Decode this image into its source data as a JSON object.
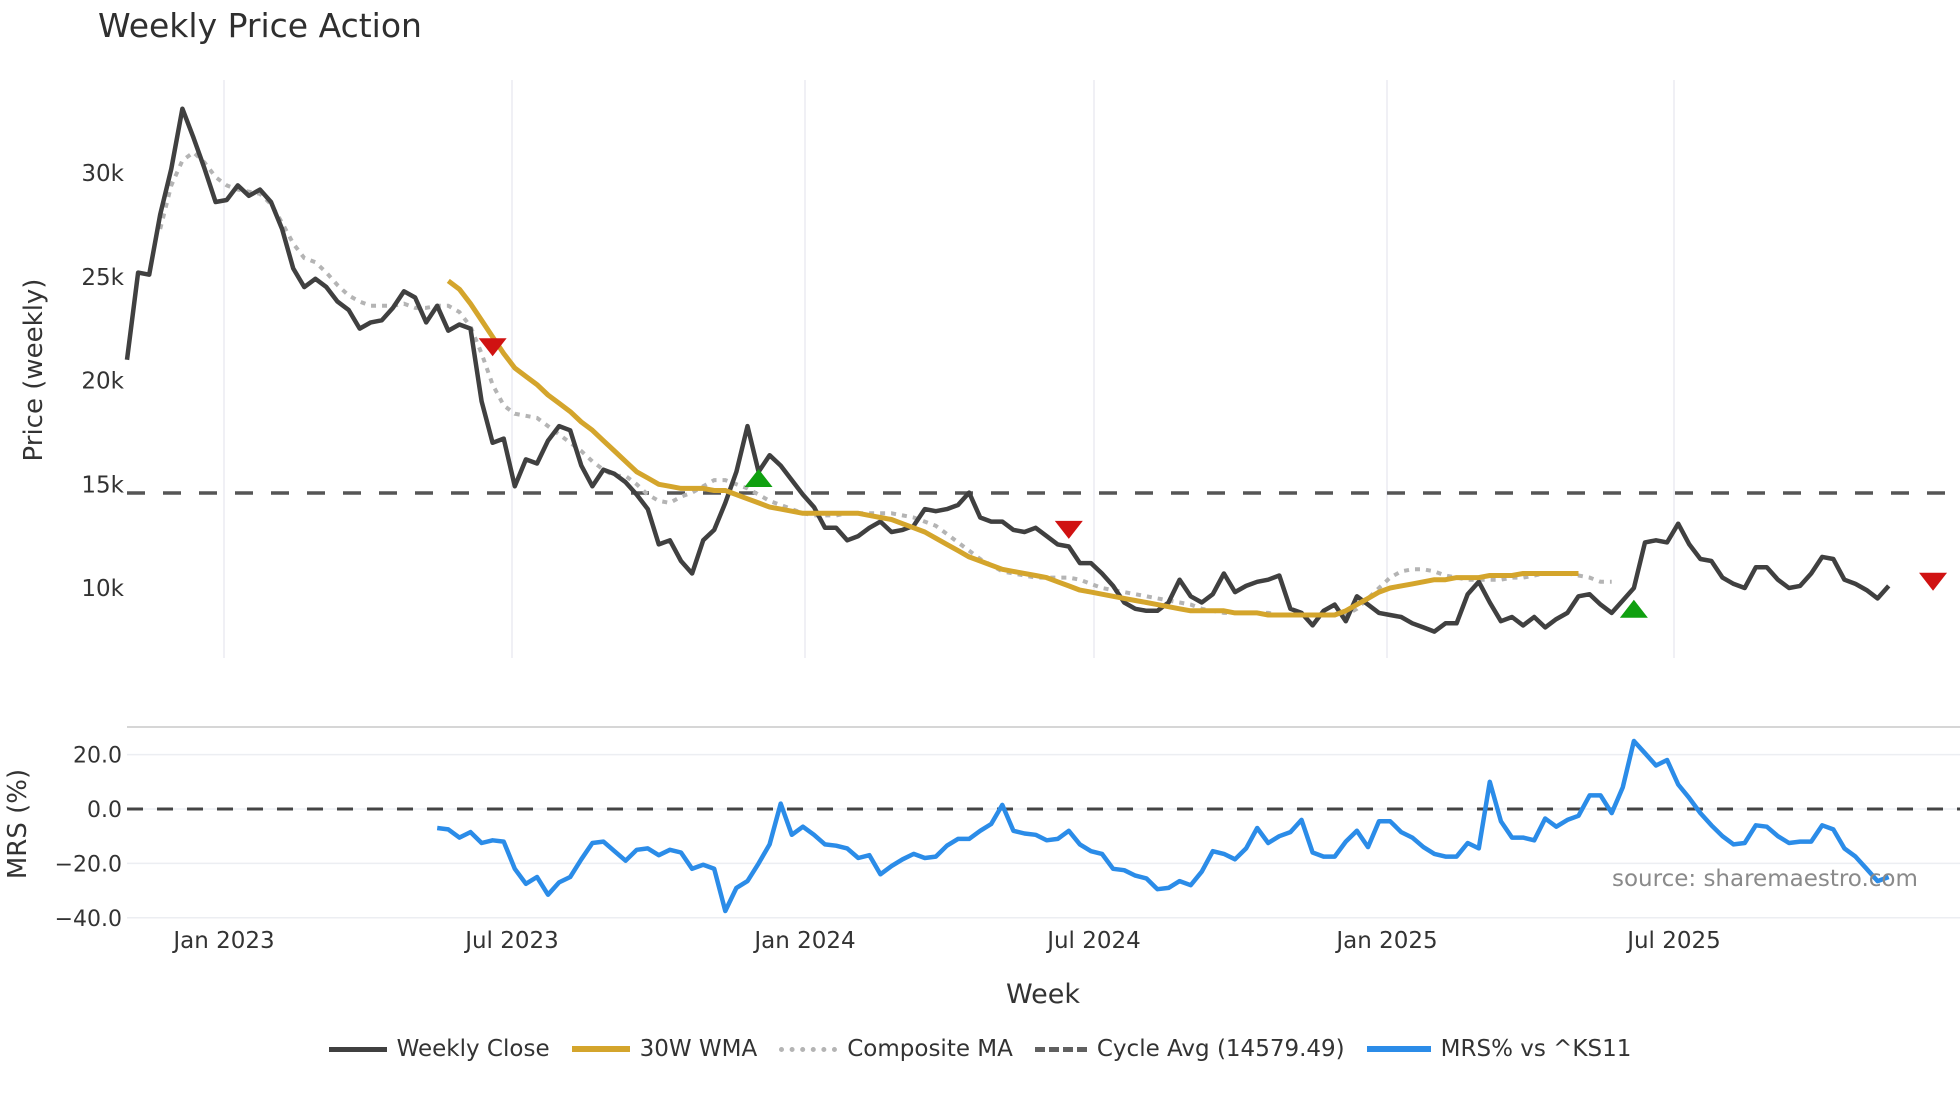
{
  "title": "Weekly Price Action",
  "source_note": "source: sharemaestro.com",
  "legend": [
    {
      "key": "close",
      "label": "Weekly Close",
      "color": "#404040"
    },
    {
      "key": "wma",
      "label": "30W WMA",
      "color": "#d4a52c"
    },
    {
      "key": "comp",
      "label": "Composite MA",
      "color": "#b4b4b4"
    },
    {
      "key": "cycle",
      "label": "Cycle Avg (14579.49)",
      "color": "#555555"
    },
    {
      "key": "mrs",
      "label": "MRS% vs ^KS11",
      "color": "#2b8ce8"
    }
  ],
  "chart_data": [
    {
      "type": "line",
      "title": "Weekly Price Action",
      "xlabel": "Week",
      "ylabel": "Price (weekly)",
      "x_tick_labels": [
        "Jan 2023",
        "Jul 2023",
        "Jan 2024",
        "Jul 2024",
        "Jan 2025",
        "Jul 2025"
      ],
      "y_tick_labels": [
        "10k",
        "15k",
        "20k",
        "25k",
        "30k"
      ],
      "y_ticks": [
        10000,
        15000,
        20000,
        25000,
        30000
      ],
      "ylim": [
        7000,
        34000
      ],
      "grid": "vertical",
      "cycle_avg": 14579.49,
      "start_week": "2022-11-14",
      "series": [
        {
          "name": "Weekly Close",
          "color": "#404040",
          "values": [
            21000,
            25200,
            25100,
            28000,
            30200,
            33100,
            31700,
            30200,
            28600,
            28700,
            29400,
            28900,
            29200,
            28600,
            27300,
            25400,
            24500,
            24900,
            24500,
            23800,
            23400,
            22500,
            22800,
            22900,
            23500,
            24300,
            24000,
            22800,
            23600,
            22400,
            22700,
            22500,
            19000,
            17000,
            17200,
            14900,
            16200,
            16000,
            17100,
            17800,
            17600,
            15900,
            14900,
            15700,
            15500,
            15100,
            14500,
            13800,
            12100,
            12300,
            11300,
            10700,
            12300,
            12800,
            14100,
            15600,
            17800,
            15600,
            16400,
            15900,
            15200,
            14500,
            13900,
            12900,
            12900,
            12300,
            12500,
            12900,
            13200,
            12700,
            12800,
            13000,
            13800,
            13700,
            13800,
            14000,
            14600,
            13400,
            13200,
            13200,
            12800,
            12700,
            12900,
            12500,
            12100,
            12000,
            11200,
            11200,
            10700,
            10100,
            9300,
            9000,
            8900,
            8900,
            9300,
            10400,
            9600,
            9300,
            9700,
            10700,
            9800,
            10100,
            10300,
            10400,
            10600,
            9000,
            8800,
            8200,
            8900,
            9200,
            8400,
            9600,
            9200,
            8800,
            8700,
            8600,
            8300,
            8100,
            7900,
            8300,
            8300,
            9700,
            10300,
            9300,
            8400,
            8600,
            8200,
            8600,
            8100,
            8500,
            8800,
            9600,
            9700,
            9200,
            8800,
            9400,
            10000,
            12200,
            12300,
            12200,
            13100,
            12100,
            11400,
            11300,
            10500,
            10200,
            10000,
            11000,
            11000,
            10400,
            10000,
            10100,
            10700,
            11500,
            11400,
            10400,
            10200,
            9900,
            9500,
            10100
          ]
        },
        {
          "name": "30W WMA",
          "color": "#d4a52c",
          "start_index": 29,
          "values": [
            24800,
            24400,
            23700,
            22900,
            22100,
            21300,
            20600,
            20200,
            19800,
            19300,
            18900,
            18500,
            18000,
            17600,
            17100,
            16600,
            16100,
            15600,
            15300,
            15000,
            14900,
            14800,
            14800,
            14800,
            14700,
            14700,
            14500,
            14300,
            14100,
            13900,
            13800,
            13700,
            13600,
            13600,
            13600,
            13600,
            13600,
            13600,
            13500,
            13400,
            13300,
            13100,
            12900,
            12700,
            12400,
            12100,
            11800,
            11500,
            11300,
            11100,
            10900,
            10800,
            10700,
            10600,
            10500,
            10300,
            10100,
            9900,
            9800,
            9700,
            9600,
            9500,
            9400,
            9300,
            9200,
            9100,
            9000,
            8900,
            8900,
            8900,
            8900,
            8800,
            8800,
            8800,
            8700,
            8700,
            8700,
            8700,
            8700,
            8700,
            8700,
            8900,
            9200,
            9500,
            9800,
            10000,
            10100,
            10200,
            10300,
            10400,
            10400,
            10500,
            10500,
            10500,
            10600,
            10600,
            10600,
            10700,
            10700,
            10700,
            10700,
            10700,
            10700
          ]
        },
        {
          "name": "Composite MA",
          "color": "#b4b4b4",
          "start_index": 3,
          "values": [
            27300,
            29400,
            30600,
            31000,
            30500,
            29800,
            29400,
            29200,
            29100,
            29000,
            28500,
            27600,
            26600,
            25900,
            25700,
            25200,
            24600,
            24100,
            23800,
            23600,
            23600,
            23600,
            23700,
            23500,
            23500,
            23600,
            23600,
            23300,
            22600,
            21300,
            19800,
            18800,
            18400,
            18300,
            18200,
            17800,
            17400,
            17000,
            16600,
            16100,
            15700,
            15400,
            15400,
            15000,
            14500,
            14200,
            14100,
            14400,
            14600,
            14900,
            15200,
            15200,
            15000,
            14800,
            14500,
            14200,
            14000,
            13800,
            13600,
            13500,
            13500,
            13500,
            13600,
            13600,
            13600,
            13600,
            13600,
            13500,
            13400,
            13200,
            13000,
            12600,
            12200,
            11800,
            11400,
            11100,
            10800,
            10700,
            10600,
            10500,
            10500,
            10500,
            10500,
            10400,
            10200,
            10000,
            9900,
            9800,
            9700,
            9600,
            9500,
            9400,
            9300,
            9200,
            9000,
            8900,
            8800,
            8800,
            8800,
            8800,
            8800,
            8700,
            8700,
            8700,
            8700,
            8700,
            8700,
            8700,
            9000,
            9500,
            10000,
            10500,
            10800,
            10900,
            10900,
            10800,
            10600,
            10500,
            10400,
            10400,
            10400,
            10400,
            10500,
            10500,
            10600,
            10700,
            10700,
            10700,
            10600,
            10500,
            10300,
            10300
          ]
        },
        {
          "name": "Cycle Avg (14579.49)",
          "color": "#555555",
          "constant": 14579.49
        }
      ],
      "signals": [
        {
          "type": "sell",
          "color": "#d01212",
          "week_index": 33,
          "value": 21600
        },
        {
          "type": "buy",
          "color": "#10a010",
          "week_index": 57,
          "value": 15300
        },
        {
          "type": "sell",
          "color": "#d01212",
          "week_index": 85,
          "value": 12800
        },
        {
          "type": "buy",
          "color": "#10a010",
          "week_index": 136,
          "value": 9000
        },
        {
          "type": "sell",
          "color": "#d01212",
          "week_index": 163,
          "value": 10300
        }
      ]
    },
    {
      "type": "line",
      "ylabel": "MRS (%)",
      "y_tick_labels": [
        "20.0",
        "0.0",
        "−20.0",
        "−40.0"
      ],
      "y_ticks": [
        20,
        0,
        -20,
        -40
      ],
      "ylim": [
        -42,
        30
      ],
      "zero_line": 0,
      "series": [
        {
          "name": "MRS% vs ^KS11",
          "color": "#2b8ce8",
          "start_index": 28,
          "values": [
            -7,
            -7.5,
            -10.5,
            -8.5,
            -12.5,
            -11.5,
            -12,
            -22,
            -27.5,
            -25,
            -31.5,
            -27,
            -25,
            -18.5,
            -12.5,
            -12,
            -15.5,
            -19,
            -15,
            -14.5,
            -17,
            -15,
            -16,
            -22,
            -20.5,
            -22,
            -37.5,
            -29,
            -26.5,
            -20,
            -13,
            2,
            -9.5,
            -6.5,
            -9.5,
            -13,
            -13.5,
            -14.5,
            -18,
            -17,
            -24,
            -21,
            -18.5,
            -16.5,
            -18,
            -17.5,
            -13.5,
            -11,
            -11,
            -8,
            -5.5,
            1.5,
            -8,
            -9,
            -9.5,
            -11.5,
            -11,
            -8,
            -13,
            -15.5,
            -16.5,
            -22,
            -22.5,
            -24.5,
            -25.5,
            -29.5,
            -29,
            -26.5,
            -28,
            -23,
            -15.5,
            -16.5,
            -18.5,
            -14.5,
            -7,
            -12.5,
            -10,
            -8.5,
            -4,
            -16,
            -17.5,
            -17.5,
            -12,
            -8,
            -14,
            -4.5,
            -4.5,
            -8.5,
            -10.5,
            -14,
            -16.5,
            -17.5,
            -17.5,
            -12.5,
            -14.5,
            10,
            -4.5,
            -10.5,
            -10.5,
            -11.5,
            -3.5,
            -6.5,
            -4,
            -2.5,
            5,
            5,
            -1.5,
            8,
            25,
            20.5,
            16,
            18,
            9,
            4,
            -1.5,
            -6,
            -10,
            -13,
            -12.5,
            -6,
            -6.5,
            -10,
            -12.5,
            -12,
            -12,
            -6,
            -7.5,
            -14.5,
            -17.5,
            -22,
            -26.5,
            -25
          ]
        }
      ]
    }
  ]
}
